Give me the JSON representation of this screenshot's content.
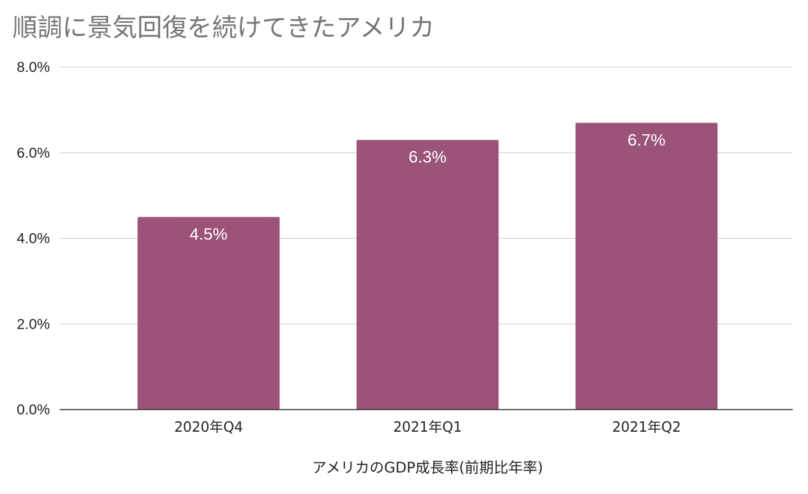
{
  "chart_data": {
    "type": "bar",
    "title": "順調に景気回復を続けてきたアメリカ",
    "xlabel": "アメリカのGDP成長率(前期比年率)",
    "ylabel": "",
    "categories": [
      "2020年Q4",
      "2021年Q1",
      "2021年Q2"
    ],
    "values": [
      4.5,
      6.3,
      6.7
    ],
    "data_labels": [
      "4.5%",
      "6.3%",
      "6.7%"
    ],
    "ylim": [
      0,
      8
    ],
    "yticks": [
      0,
      2,
      4,
      6,
      8
    ],
    "ytick_labels": [
      "0.0%",
      "2.0%",
      "4.0%",
      "6.0%",
      "8.0%"
    ],
    "grid": true,
    "legend": "none",
    "bar_color": "#9b5378"
  }
}
